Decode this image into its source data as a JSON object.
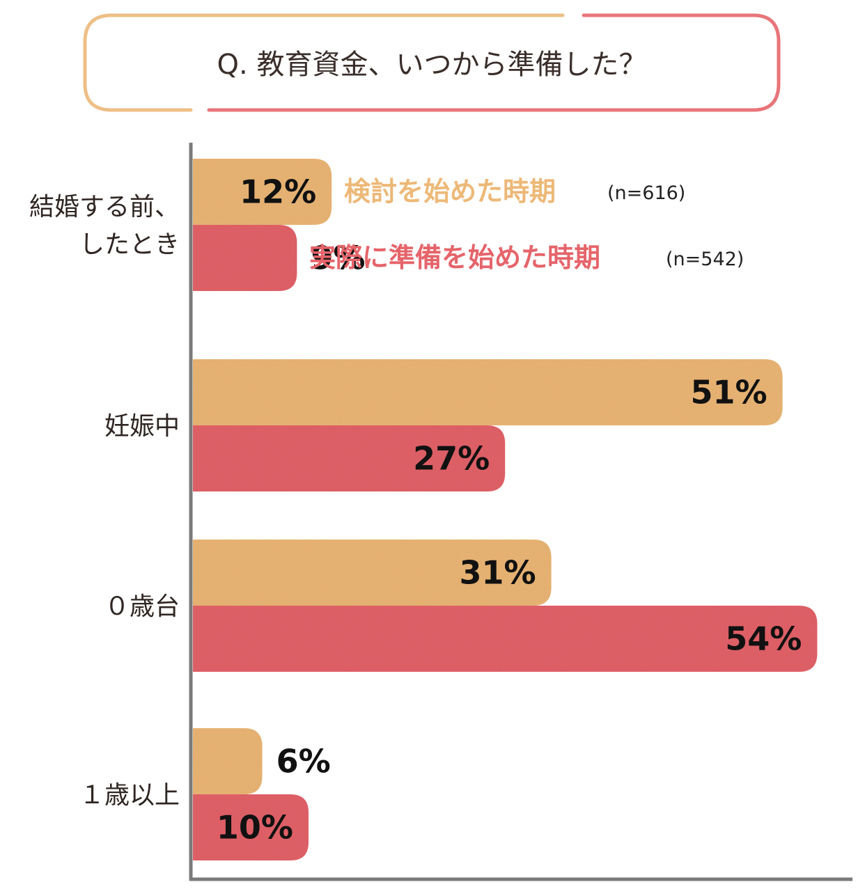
{
  "chart_data": {
    "type": "bar",
    "orientation": "horizontal",
    "title": "Q. 教育資金、いつから準備した？",
    "categories": [
      "結婚する前、\nしたとき",
      "妊娠中",
      "０歳台",
      "１歳以上"
    ],
    "series": [
      {
        "name": "検討を始めた時期",
        "n_label": "(n=616)",
        "color": "#edb877",
        "values": [
          12,
          51,
          31,
          6
        ],
        "labels": [
          "12%",
          "51%",
          "31%",
          "6%"
        ]
      },
      {
        "name": "実際に準備を始めた時期",
        "n_label": "(n=542)",
        "color": "#e5646a",
        "values": [
          9,
          27,
          54,
          10
        ],
        "labels": [
          "9%",
          "27%",
          "54%",
          "10%"
        ]
      }
    ],
    "unit": "%",
    "xlim": [
      0,
      60
    ],
    "grid": false,
    "legend_position": "inline-top"
  },
  "colors": {
    "frame_left": "#edbf86",
    "frame_right": "#e8757a",
    "axis": "#7a7a7a"
  }
}
